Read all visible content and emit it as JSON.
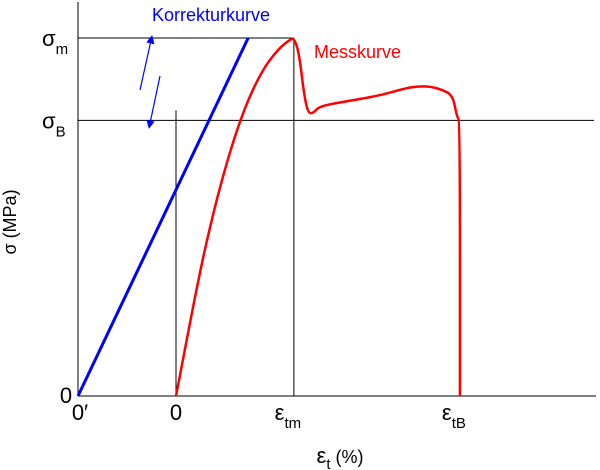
{
  "chart_data": {
    "type": "line",
    "title": "",
    "xlabel": {
      "main": "ε",
      "sub": "t",
      "unit": " (%)"
    },
    "ylabel": "σ (MPa)",
    "y_ticks": [
      {
        "main": "σ",
        "sub": "m",
        "level": "sigma_m"
      },
      {
        "main": "σ",
        "sub": "B",
        "level": "sigma_B"
      },
      {
        "main": "0",
        "sub": "",
        "level": "zero"
      }
    ],
    "x_ticks": [
      {
        "main": "0",
        "sub": "",
        "mark": "0′",
        "ref": "origin"
      },
      {
        "main": "0",
        "sub": "",
        "ref": "zero"
      },
      {
        "main": "ε",
        "sub": "tm",
        "ref": "eps_tm"
      },
      {
        "main": "ε",
        "sub": "tB",
        "ref": "eps_tB"
      }
    ],
    "series": [
      {
        "name": "Korrekturkurve",
        "color": "#0000ff",
        "style": "straight line with loading/unloading arrows",
        "points": [
          [
            0.0,
            0.0
          ],
          [
            0.83,
            1.0
          ]
        ]
      },
      {
        "name": "Messkurve",
        "color": "#ff0000",
        "style": "curve",
        "points": [
          [
            0.0,
            0.0
          ],
          [
            0.1,
            0.3
          ],
          [
            0.16,
            0.46
          ],
          [
            0.24,
            0.64
          ],
          [
            0.33,
            0.8
          ],
          [
            0.42,
            0.91
          ],
          [
            0.5,
            0.97
          ],
          [
            0.555,
            0.995
          ],
          [
            0.575,
            1.0
          ],
          [
            0.6,
            0.96
          ],
          [
            0.625,
            0.84
          ],
          [
            0.645,
            0.79
          ],
          [
            0.67,
            0.79
          ],
          [
            0.7,
            0.81
          ],
          [
            0.85,
            0.825
          ],
          [
            1.0,
            0.84
          ],
          [
            1.12,
            0.86
          ],
          [
            1.18,
            0.865
          ],
          [
            1.24,
            0.865
          ],
          [
            1.3,
            0.855
          ],
          [
            1.35,
            0.84
          ],
          [
            1.37,
            0.78
          ],
          [
            1.385,
            0.77
          ],
          [
            1.385,
            0.0
          ]
        ]
      }
    ],
    "reference_lines": {
      "sigma_m": 1.0,
      "sigma_B": 0.77,
      "eps_tm": 0.575,
      "eps_tB": 1.385
    },
    "grid": false,
    "legend": "none"
  }
}
